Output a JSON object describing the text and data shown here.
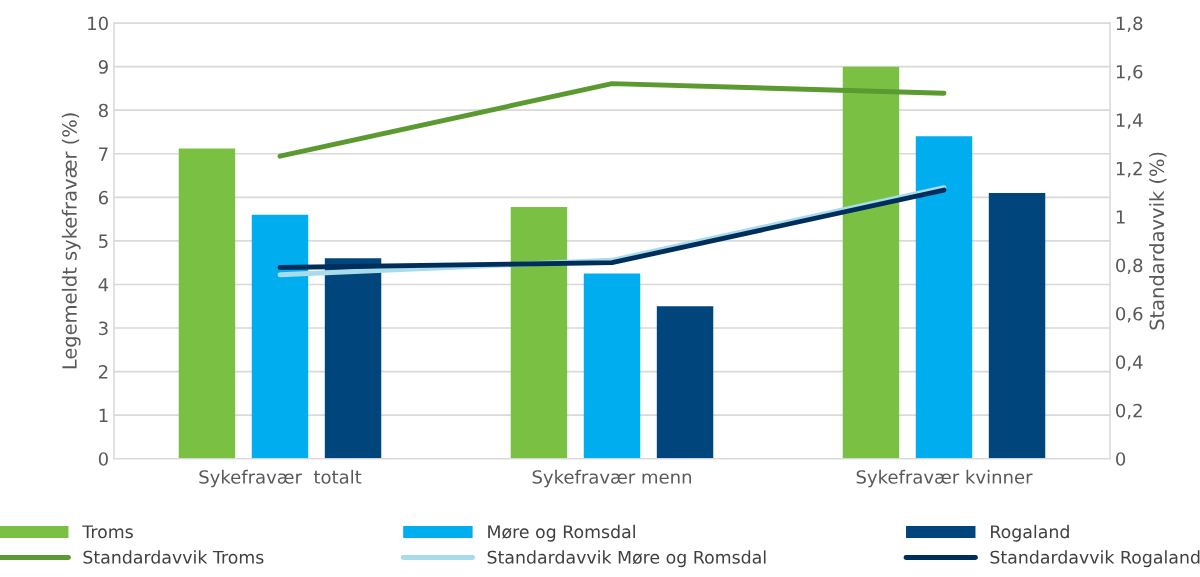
{
  "chart_data": {
    "type": "bar",
    "ylabel": "Legemeldt sykefravær (%)",
    "y2label": "Standardavvik (%)",
    "categories": [
      "Sykefravær  totalt",
      "Sykefravær menn",
      "Sykefravær kvinner"
    ],
    "series": [
      {
        "name": "Troms",
        "color": "#7ac143",
        "values": [
          7.12,
          5.78,
          9.0
        ]
      },
      {
        "name": "Møre og Romsdal",
        "color": "#00adef",
        "values": [
          5.6,
          4.25,
          7.4
        ]
      },
      {
        "name": "Rogaland",
        "color": "#00457c",
        "values": [
          4.6,
          3.5,
          6.1
        ]
      },
      {
        "name": "Standardavvik Troms",
        "type": "line",
        "axis": "y2",
        "color": "#5b9a30",
        "values": [
          1.25,
          1.55,
          1.51
        ]
      },
      {
        "name": "Standardavvik Møre og Romsdal",
        "type": "line",
        "axis": "y2",
        "color": "#a8dcea",
        "values": [
          0.76,
          0.82,
          1.12
        ]
      },
      {
        "name": "Standardavvik Rogaland",
        "type": "line",
        "axis": "y2",
        "color": "#002e5c",
        "values": [
          0.79,
          0.81,
          1.11
        ]
      }
    ],
    "ylim": [
      0,
      10
    ],
    "yticks": [
      0,
      1,
      2,
      3,
      4,
      5,
      6,
      7,
      8,
      9,
      10
    ],
    "y2lim": [
      0,
      1.8
    ],
    "y2ticks": [
      0,
      {
        "value": 0.2,
        "label": "0,2"
      },
      {
        "value": 0.4,
        "label": "0,4"
      },
      {
        "value": 0.6,
        "label": "0,6"
      },
      {
        "value": 0.8,
        "label": "0,8"
      },
      1,
      {
        "value": 1.2,
        "label": "1,2"
      },
      {
        "value": 1.4,
        "label": "1,4"
      },
      {
        "value": 1.6,
        "label": "1,6"
      },
      {
        "value": 1.8,
        "label": "1,8"
      }
    ],
    "grid": "y",
    "legend": "bottom",
    "marker": "none",
    "line_style": "solid"
  }
}
